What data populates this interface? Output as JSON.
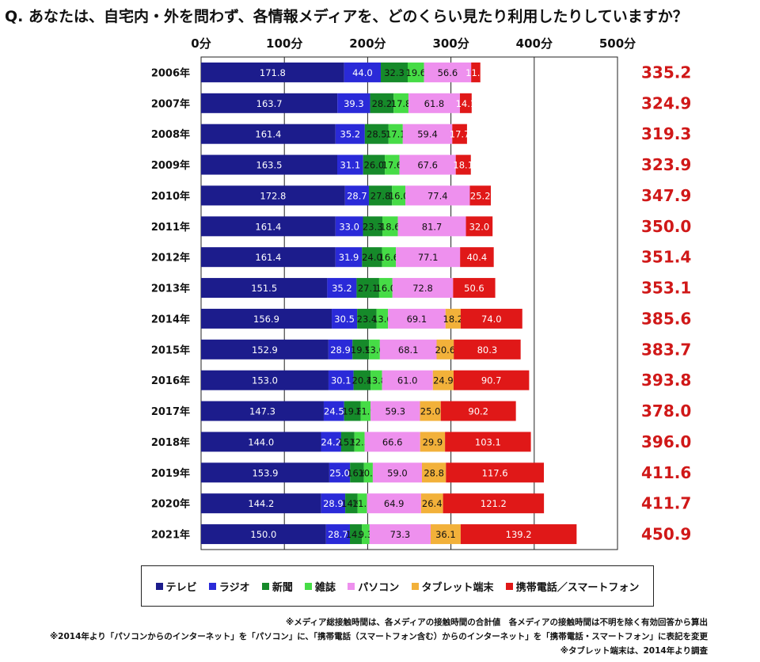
{
  "title": "Q. あなたは、自宅内・外を問わず、各情報メディアを、どのくらい見たり利用したりしていますか？",
  "chart_data": {
    "type": "bar",
    "orientation": "horizontal",
    "stacked": true,
    "x_axis": {
      "min": 0,
      "max": 500,
      "ticks": [
        "0分",
        "100分",
        "200分",
        "300分",
        "400分",
        "500分"
      ]
    },
    "categories": [
      "2006年",
      "2007年",
      "2008年",
      "2009年",
      "2010年",
      "2011年",
      "2012年",
      "2013年",
      "2014年",
      "2015年",
      "2016年",
      "2017年",
      "2018年",
      "2019年",
      "2020年",
      "2021年"
    ],
    "series": [
      {
        "name": "テレビ",
        "color": "#1c1c8c",
        "values": [
          171.8,
          163.7,
          161.4,
          163.5,
          172.8,
          161.4,
          161.4,
          151.5,
          156.9,
          152.9,
          153.0,
          147.3,
          144.0,
          153.9,
          144.2,
          150.0
        ]
      },
      {
        "name": "ラジオ",
        "color": "#2a2ad8",
        "values": [
          44.0,
          39.3,
          35.2,
          31.1,
          28.7,
          33.0,
          31.9,
          35.2,
          30.5,
          28.9,
          30.1,
          24.5,
          24.2,
          25.0,
          28.9,
          28.7
        ]
      },
      {
        "name": "新聞",
        "color": "#168a2a",
        "values": [
          32.3,
          28.2,
          28.5,
          26.0,
          27.8,
          23.3,
          24.0,
          27.1,
          23.4,
          19.9,
          20.4,
          19.8,
          15.9,
          16.6,
          14.9,
          14.3
        ]
      },
      {
        "name": "雑誌",
        "color": "#46dc46",
        "values": [
          19.6,
          17.8,
          17.1,
          17.6,
          16.0,
          18.6,
          16.6,
          16.0,
          13.6,
          13.0,
          13.8,
          11.9,
          12.3,
          10.7,
          11.2,
          9.3
        ]
      },
      {
        "name": "パソコン",
        "color": "#ee90ee",
        "values": [
          56.6,
          61.8,
          59.4,
          67.6,
          77.4,
          81.7,
          77.1,
          72.8,
          69.1,
          68.1,
          61.0,
          59.3,
          66.6,
          59.0,
          64.9,
          73.3
        ]
      },
      {
        "name": "タブレット端末",
        "color": "#f2b13a",
        "values": [
          null,
          null,
          null,
          null,
          null,
          null,
          null,
          null,
          18.2,
          20.6,
          24.9,
          25.0,
          29.9,
          28.8,
          26.4,
          36.1
        ]
      },
      {
        "name": "携帯電話／スマートフォン",
        "color": "#e01818",
        "values": [
          11.0,
          14.1,
          17.7,
          18.1,
          25.2,
          32.0,
          40.4,
          50.6,
          74.0,
          80.3,
          90.7,
          90.2,
          103.1,
          117.6,
          121.2,
          139.2
        ]
      }
    ],
    "totals": [
      "335.2",
      "324.9",
      "319.3",
      "323.9",
      "347.9",
      "350.0",
      "351.4",
      "353.1",
      "385.6",
      "383.7",
      "393.8",
      "378.0",
      "396.0",
      "411.6",
      "411.7",
      "450.9"
    ],
    "total_color": "#d01818",
    "gridlines": true,
    "legend_position": "bottom"
  },
  "notes": [
    "※メディア総接触時間は、各メディアの接触時間の合計値　各メディアの接触時間は不明を除く有効回答から算出",
    "※2014年より「パソコンからのインターネット」を「パソコン」に、「携帯電話（スマートフォン含む）からのインターネット」を「携帯電話・スマートフォン」に表記を変更",
    "※タブレット端末は、2014年より調査"
  ]
}
